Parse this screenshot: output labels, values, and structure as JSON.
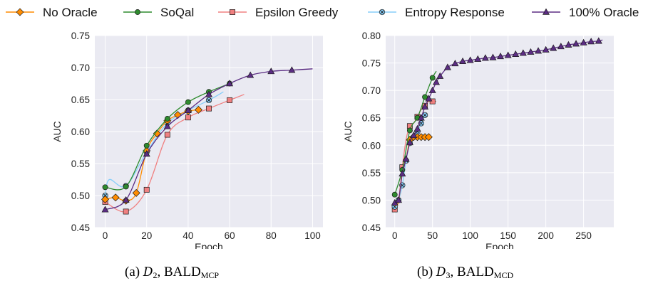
{
  "colors": {
    "No Oracle": "#ff8c00",
    "SoQal": "#2e8b2e",
    "Epsilon Greedy": "#f08080",
    "Entropy Response": "#87cefa",
    "100% Oracle": "#5b2c83"
  },
  "legend": {
    "items": [
      {
        "label": "No Oracle",
        "marker": "diamond"
      },
      {
        "label": "SoQal",
        "marker": "circle"
      },
      {
        "label": "Epsilon Greedy",
        "marker": "square"
      },
      {
        "label": "Entropy Response",
        "marker": "x-circle"
      },
      {
        "label": "100% Oracle",
        "marker": "triangle"
      }
    ]
  },
  "captions": {
    "a": {
      "prefix": "(a) ",
      "dataset": "D",
      "dataset_sub": "2",
      "sep": ", ",
      "method": "BALD",
      "method_sub": "MCP"
    },
    "b": {
      "prefix": "(b) ",
      "dataset": "D",
      "dataset_sub": "3",
      "sep": ", ",
      "method": "BALD",
      "method_sub": "MCD"
    }
  },
  "chart_data": [
    {
      "type": "line",
      "xlabel": "Epoch",
      "ylabel": "AUC",
      "xlim": [
        -5,
        105
      ],
      "ylim": [
        0.45,
        0.75
      ],
      "xticks": [
        0,
        20,
        40,
        60,
        80,
        100
      ],
      "yticks": [
        0.45,
        0.5,
        0.55,
        0.6,
        0.65,
        0.7,
        0.75
      ],
      "grid": true,
      "series": [
        {
          "name": "Epsilon Greedy",
          "x": [
            0,
            10,
            20,
            30,
            40,
            50,
            60,
            67
          ],
          "y": [
            0.49,
            0.475,
            0.509,
            0.595,
            0.622,
            0.636,
            0.649,
            0.658
          ],
          "markers_x": [
            0,
            10,
            20,
            30,
            40,
            50,
            60
          ]
        },
        {
          "name": "Entropy Response",
          "x": [
            0,
            2,
            10,
            20,
            30,
            40,
            50,
            57
          ],
          "y": [
            0.5,
            0.525,
            0.515,
            0.568,
            0.613,
            0.633,
            0.649,
            0.662
          ],
          "markers_x": [
            0,
            10,
            20,
            30,
            40,
            50
          ]
        },
        {
          "name": "No Oracle",
          "x": [
            0,
            5,
            10,
            15,
            20,
            25,
            30,
            35,
            40,
            45
          ],
          "y": [
            0.494,
            0.497,
            0.492,
            0.504,
            0.57,
            0.597,
            0.617,
            0.626,
            0.632,
            0.634
          ],
          "markers_x": [
            0,
            5,
            10,
            15,
            20,
            25,
            30,
            35,
            40,
            45
          ]
        },
        {
          "name": "SoQal",
          "x": [
            0,
            10,
            20,
            30,
            40,
            50,
            60
          ],
          "y": [
            0.513,
            0.514,
            0.578,
            0.62,
            0.646,
            0.662,
            0.675
          ],
          "markers_x": [
            0,
            10,
            20,
            30,
            40,
            50,
            60
          ]
        },
        {
          "name": "100% Oracle",
          "x": [
            0,
            10,
            20,
            30,
            40,
            50,
            60,
            70,
            80,
            90,
            100
          ],
          "y": [
            0.478,
            0.493,
            0.565,
            0.608,
            0.633,
            0.658,
            0.675,
            0.688,
            0.694,
            0.696,
            0.698
          ],
          "markers_x": [
            0,
            10,
            20,
            30,
            40,
            50,
            60,
            70,
            80,
            90
          ]
        }
      ]
    },
    {
      "type": "line",
      "xlabel": "Epoch",
      "ylabel": "AUC",
      "xlim": [
        -12,
        290
      ],
      "ylim": [
        0.45,
        0.8
      ],
      "xticks": [
        0,
        50,
        100,
        150,
        200,
        250
      ],
      "yticks": [
        0.45,
        0.5,
        0.55,
        0.6,
        0.65,
        0.7,
        0.75,
        0.8
      ],
      "grid": true,
      "series": [
        {
          "name": "Epsilon Greedy",
          "x": [
            0,
            5,
            10,
            15,
            20,
            25,
            30,
            35,
            40,
            45,
            50,
            55
          ],
          "y": [
            0.483,
            0.5,
            0.56,
            0.61,
            0.635,
            0.64,
            0.652,
            0.665,
            0.672,
            0.68,
            0.68,
            0.68
          ],
          "markers_x": [
            0,
            10,
            20,
            30,
            40,
            50
          ]
        },
        {
          "name": "Entropy Response",
          "x": [
            0,
            5,
            10,
            15,
            20,
            25,
            30,
            35,
            40
          ],
          "y": [
            0.488,
            0.5,
            0.527,
            0.572,
            0.604,
            0.615,
            0.625,
            0.64,
            0.655
          ],
          "markers_x": [
            0,
            5,
            10,
            15,
            20,
            25,
            30,
            35,
            40
          ]
        },
        {
          "name": "No Oracle",
          "x": [
            0,
            5,
            10,
            15,
            20,
            25,
            30,
            35,
            40,
            45
          ],
          "y": [
            0.49,
            0.497,
            0.55,
            0.575,
            0.61,
            0.615,
            0.615,
            0.615,
            0.615,
            0.615
          ],
          "markers_x": [
            20,
            25,
            30,
            35,
            40,
            45
          ]
        },
        {
          "name": "SoQal",
          "x": [
            0,
            10,
            20,
            30,
            40,
            50,
            55
          ],
          "y": [
            0.51,
            0.555,
            0.627,
            0.65,
            0.688,
            0.723,
            0.735
          ],
          "markers_x": [
            0,
            10,
            20,
            30,
            40,
            50
          ]
        },
        {
          "name": "100% Oracle",
          "x": [
            0,
            5,
            10,
            15,
            20,
            25,
            30,
            35,
            40,
            45,
            50,
            55,
            60,
            70,
            80,
            90,
            100,
            110,
            120,
            130,
            140,
            150,
            160,
            170,
            180,
            190,
            200,
            210,
            220,
            230,
            240,
            250,
            260,
            270,
            275
          ],
          "y": [
            0.495,
            0.5,
            0.548,
            0.575,
            0.605,
            0.618,
            0.63,
            0.65,
            0.67,
            0.685,
            0.7,
            0.715,
            0.726,
            0.742,
            0.749,
            0.753,
            0.755,
            0.757,
            0.759,
            0.76,
            0.762,
            0.764,
            0.766,
            0.768,
            0.77,
            0.772,
            0.774,
            0.777,
            0.78,
            0.783,
            0.785,
            0.787,
            0.789,
            0.79,
            0.792
          ],
          "markers_x": [
            0,
            5,
            10,
            15,
            20,
            25,
            30,
            35,
            40,
            45,
            50,
            55,
            60,
            70,
            80,
            90,
            100,
            110,
            120,
            130,
            140,
            150,
            160,
            170,
            180,
            190,
            200,
            210,
            220,
            230,
            240,
            250,
            260,
            270
          ]
        }
      ]
    }
  ]
}
